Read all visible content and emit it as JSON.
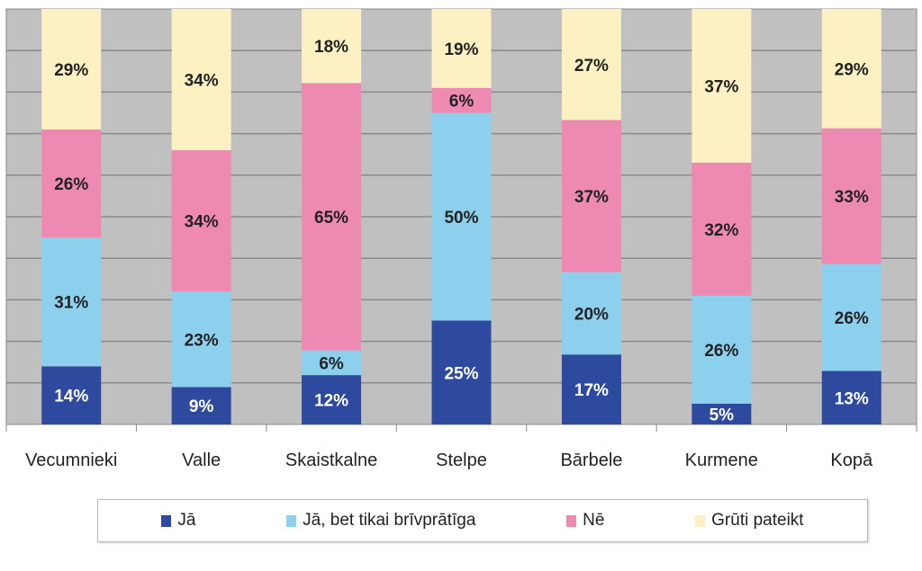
{
  "chart_data": {
    "type": "bar",
    "stacked": true,
    "categories": [
      "Vecumnieki",
      "Valle",
      "Skaistkalne",
      "Stelpe",
      "Bārbele",
      "Kurmene",
      "Kopā"
    ],
    "series": [
      {
        "name": "Jā",
        "color": "#2e4a9f",
        "label_color": "#ffffff",
        "values": [
          14,
          9,
          12,
          25,
          17,
          5,
          13
        ]
      },
      {
        "name": "Jā, bet tikai brīvprātīga",
        "color": "#8dd0ee",
        "label_color": "#222222",
        "values": [
          31,
          23,
          6,
          50,
          20,
          26,
          26
        ]
      },
      {
        "name": "Nē",
        "color": "#ee8ab2",
        "label_color": "#222222",
        "values": [
          26,
          34,
          65,
          6,
          37,
          32,
          33
        ]
      },
      {
        "name": "Grūti pateikt",
        "color": "#fdf0c2",
        "label_color": "#222222",
        "values": [
          29,
          34,
          18,
          19,
          27,
          37,
          29
        ]
      }
    ],
    "value_suffix": "%",
    "ylim": [
      0,
      100
    ],
    "grid": true,
    "plot_background": "#c0c0c0",
    "legend_position": "bottom"
  }
}
